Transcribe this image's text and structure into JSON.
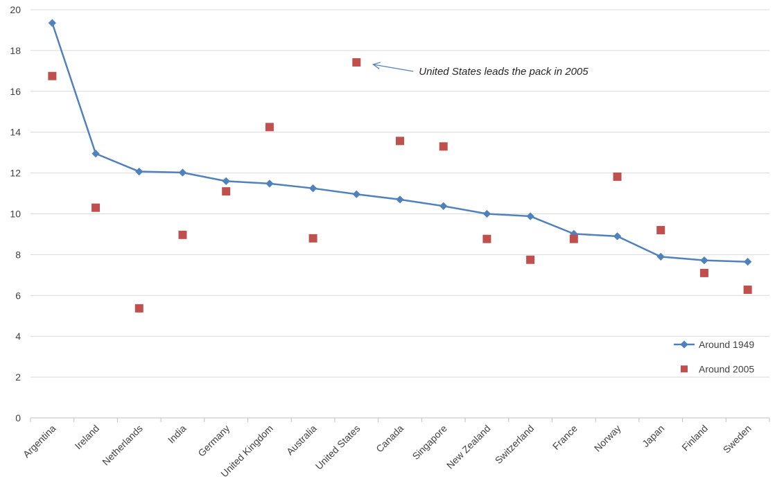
{
  "chart_data": {
    "type": "line",
    "categories": [
      "Argentina",
      "Ireland",
      "Netherlands",
      "India",
      "Germany",
      "United Kingdom",
      "Australia",
      "United States",
      "Canada",
      "Singapore",
      "New Zealand",
      "Switzerland",
      "France",
      "Norway",
      "Japan",
      "Finland",
      "Sweden"
    ],
    "series": [
      {
        "name": "Around 1949",
        "mark": "line-diamond",
        "color": "#4F81BD",
        "values": [
          19.35,
          12.95,
          12.07,
          12.02,
          11.6,
          11.48,
          11.25,
          10.96,
          10.7,
          10.38,
          10.0,
          9.88,
          9.02,
          8.9,
          7.9,
          7.72,
          7.65
        ]
      },
      {
        "name": "Around 2005",
        "mark": "square",
        "color": "#C0504D",
        "values": [
          16.75,
          10.3,
          5.37,
          8.97,
          11.1,
          14.25,
          8.8,
          17.42,
          13.57,
          13.3,
          8.77,
          7.75,
          8.77,
          11.82,
          9.2,
          7.1,
          6.28
        ]
      }
    ],
    "ylim": [
      0,
      20
    ],
    "yticks": [
      "0",
      "2",
      "4",
      "6",
      "8",
      "10",
      "12",
      "14",
      "16",
      "18",
      "20"
    ],
    "grid": true,
    "legend_position": "bottom-right",
    "annotation": {
      "text": "United States leads the pack in 2005",
      "target_category": "United States",
      "target_series": "Around 2005"
    }
  }
}
